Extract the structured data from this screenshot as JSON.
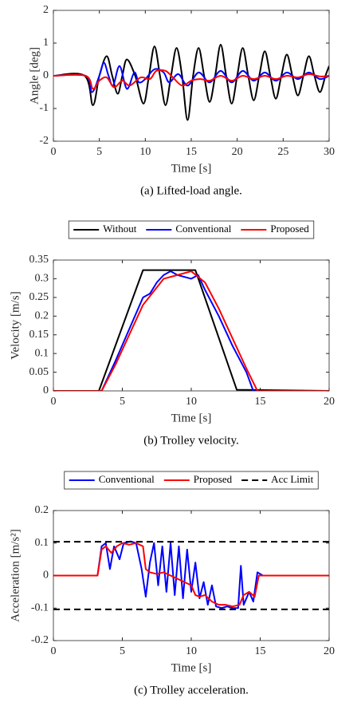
{
  "chart_data": [
    {
      "type": "line",
      "smooth": true,
      "caption": "(a) Lifted-load angle.",
      "xlabel": "Time [s]",
      "ylabel": "Angle [deg]",
      "xlim": [
        0,
        30
      ],
      "ylim": [
        -2,
        2
      ],
      "xticks": [
        0,
        5,
        10,
        15,
        20,
        25,
        30
      ],
      "yticks": [
        -2,
        -1,
        0,
        1,
        2
      ],
      "series": [
        {
          "name": "Without",
          "color": "#000000",
          "x": [
            0,
            3.4,
            4.3,
            5.0,
            5.8,
            6.4,
            7.0,
            7.5,
            8.0,
            8.9,
            9.8,
            10.4,
            11.0,
            11.6,
            12.2,
            12.8,
            13.4,
            14.0,
            14.6,
            15.2,
            15.8,
            16.4,
            17.0,
            17.6,
            18.2,
            18.8,
            19.4,
            20.0,
            20.6,
            21.2,
            21.8,
            22.4,
            23.0,
            23.6,
            24.2,
            24.8,
            25.4,
            26.0,
            26.6,
            27.2,
            27.8,
            28.4,
            29.0,
            29.6,
            30
          ],
          "values": [
            0,
            0,
            -0.9,
            0,
            0.6,
            0,
            -0.55,
            0,
            0.5,
            0,
            -0.85,
            0,
            0.9,
            0,
            -0.9,
            0,
            0.85,
            0,
            -1.35,
            0,
            0.85,
            0,
            -0.8,
            0,
            0.95,
            0,
            -0.85,
            0,
            0.85,
            0,
            -0.75,
            0,
            0.75,
            0,
            -0.7,
            0,
            0.65,
            0,
            -0.6,
            0,
            0.6,
            0,
            -0.5,
            0,
            0.3
          ]
        },
        {
          "name": "Conventional",
          "color": "#0000ff",
          "x": [
            0,
            3.5,
            4.2,
            5.0,
            5.5,
            6.0,
            6.5,
            7.2,
            8.0,
            8.8,
            9.3,
            10.0,
            11.0,
            12.0,
            12.6,
            13.6,
            14.6,
            15.8,
            17.0,
            18.2,
            19.4,
            20.6,
            21.8,
            23.0,
            24.2,
            25.4,
            26.6,
            27.8,
            29.0,
            30
          ],
          "values": [
            0,
            0,
            -0.5,
            0,
            0.4,
            0,
            -0.3,
            0.3,
            -0.4,
            0.1,
            -0.2,
            -0.1,
            0.2,
            0.1,
            -0.2,
            0.05,
            -0.3,
            0.1,
            -0.2,
            0.15,
            -0.2,
            0.15,
            -0.15,
            0.1,
            -0.15,
            0.1,
            -0.1,
            0.1,
            -0.1,
            0
          ]
        },
        {
          "name": "Proposed",
          "color": "#ff0000",
          "x": [
            0,
            3.5,
            4.3,
            5.0,
            5.8,
            6.6,
            7.5,
            8.3,
            9.5,
            10.5,
            11.2,
            12.2,
            13.0,
            14.0,
            15.0,
            16.0,
            17.0,
            18.2,
            19.4,
            20.6,
            21.8,
            23.0,
            24.2,
            25.4,
            26.6,
            27.8,
            29.0,
            30
          ],
          "values": [
            0,
            0,
            -0.4,
            -0.15,
            -0.05,
            -0.35,
            -0.15,
            -0.3,
            -0.05,
            -0.1,
            0.15,
            0.15,
            -0.05,
            -0.3,
            -0.15,
            -0.1,
            -0.15,
            0,
            -0.15,
            0,
            -0.1,
            0,
            -0.1,
            0,
            -0.05,
            0.05,
            -0.02,
            0
          ]
        }
      ]
    },
    {
      "type": "line",
      "smooth": false,
      "legend": "top",
      "caption": "(b) Trolley velocity.",
      "xlabel": "Time [s]",
      "ylabel": "Velocity [m/s]",
      "xlim": [
        0,
        20
      ],
      "ylim": [
        0,
        0.35
      ],
      "xticks": [
        0,
        5,
        10,
        15,
        20
      ],
      "yticks": [
        0,
        0.05,
        0.1,
        0.15,
        0.2,
        0.25,
        0.3,
        0.35
      ],
      "series": [
        {
          "name": "Without",
          "color": "#000000",
          "x": [
            0,
            3.3,
            6.5,
            10.3,
            13.3,
            20
          ],
          "values": [
            0,
            0,
            0.323,
            0.323,
            0.003,
            0
          ]
        },
        {
          "name": "Conventional",
          "color": "#0000ff",
          "x": [
            0,
            3.5,
            4.5,
            6.5,
            7.0,
            7.5,
            8.0,
            8.5,
            9.0,
            10.0,
            10.5,
            11.0,
            12.0,
            13.0,
            14.0,
            14.5,
            20
          ],
          "values": [
            0,
            0,
            0.08,
            0.25,
            0.26,
            0.29,
            0.31,
            0.32,
            0.31,
            0.3,
            0.31,
            0.27,
            0.2,
            0.12,
            0.05,
            0,
            0
          ]
        },
        {
          "name": "Proposed",
          "color": "#ff0000",
          "x": [
            0,
            3.5,
            4.5,
            6.5,
            8.0,
            9.0,
            10.0,
            11.0,
            12.0,
            13.0,
            14.0,
            14.8,
            20
          ],
          "values": [
            0,
            0,
            0.07,
            0.23,
            0.3,
            0.31,
            0.32,
            0.29,
            0.22,
            0.14,
            0.06,
            0,
            0
          ]
        }
      ]
    },
    {
      "type": "line",
      "smooth": false,
      "legend": "top",
      "caption": "(c) Trolley acceleration.",
      "xlabel": "Time [s]",
      "ylabel": "Acceleration [m/s²]",
      "xlim": [
        0,
        20
      ],
      "ylim": [
        -0.2,
        0.2
      ],
      "xticks": [
        0,
        5,
        10,
        15,
        20
      ],
      "yticks": [
        -0.2,
        -0.1,
        0,
        0.1,
        0.2
      ],
      "series": [
        {
          "name": "Conventional",
          "color": "#0000ff",
          "x": [
            0,
            3.2,
            3.5,
            3.8,
            4.1,
            4.4,
            4.8,
            5.1,
            5.6,
            6.0,
            6.4,
            6.7,
            7.0,
            7.3,
            7.6,
            7.9,
            8.2,
            8.5,
            8.8,
            9.1,
            9.4,
            9.7,
            10.0,
            10.3,
            10.6,
            10.9,
            11.2,
            11.5,
            11.8,
            12.2,
            12.6,
            13.0,
            13.4,
            13.6,
            13.8,
            14.2,
            14.5,
            14.8,
            15.2,
            16.0,
            16.8
          ],
          "values": [
            0,
            0,
            0.09,
            0.1,
            0.02,
            0.09,
            0.05,
            0.1,
            0.105,
            0.1,
            0.02,
            -0.065,
            0.04,
            0.1,
            -0.03,
            0.09,
            -0.05,
            0.1,
            -0.06,
            0.09,
            -0.07,
            0.08,
            -0.05,
            0.04,
            -0.07,
            -0.02,
            -0.09,
            -0.03,
            -0.095,
            -0.1,
            -0.095,
            -0.1,
            -0.1,
            0.03,
            -0.09,
            -0.05,
            -0.08,
            0.01,
            0,
            0,
            0
          ]
        },
        {
          "name": "Proposed",
          "color": "#ff0000",
          "x": [
            0,
            3.2,
            3.5,
            3.8,
            4.2,
            4.6,
            5.0,
            5.5,
            6.0,
            6.5,
            6.7,
            7.0,
            7.5,
            8.0,
            8.5,
            9.0,
            9.5,
            10.0,
            10.3,
            10.6,
            11.0,
            11.5,
            12.0,
            12.5,
            13.0,
            13.5,
            13.8,
            14.2,
            14.6,
            14.9,
            16.0,
            20
          ],
          "values": [
            0,
            0,
            0.08,
            0.09,
            0.07,
            0.09,
            0.1,
            0.095,
            0.1,
            0.09,
            0.02,
            0.01,
            0.005,
            0.01,
            0,
            -0.01,
            -0.02,
            -0.03,
            -0.06,
            -0.065,
            -0.06,
            -0.08,
            -0.09,
            -0.09,
            -0.095,
            -0.09,
            -0.06,
            -0.05,
            -0.065,
            0,
            0,
            0
          ]
        },
        {
          "name": "Acc Limit",
          "color": "#000000",
          "dash": true,
          "values": [
            0.104,
            -0.104
          ]
        }
      ]
    }
  ]
}
